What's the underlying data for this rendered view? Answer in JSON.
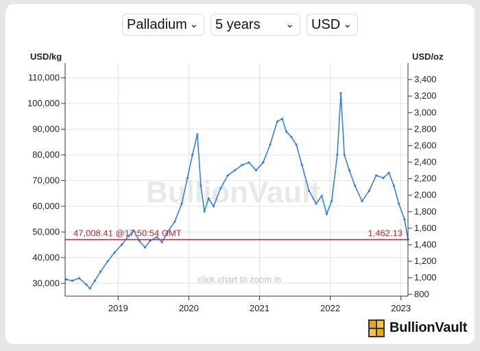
{
  "controls": {
    "metal": {
      "value": "Palladium",
      "chevron": "chevron-down-icon"
    },
    "period": {
      "value": "5 years",
      "chevron": "chevron-down-icon"
    },
    "currency": {
      "value": "USD",
      "chevron": "chevron-down-icon"
    }
  },
  "brand": {
    "name": "BullionVault",
    "icon": "gold-bar-stack-icon",
    "accent": "#e8a81b"
  },
  "colors": {
    "line": "#2f7fe6",
    "marker": "#c8252a",
    "grid": "#e2e2e2",
    "watermark": "#e8e8e8"
  },
  "chart_data": {
    "type": "line",
    "title": "",
    "watermark": "BullionVault",
    "hint": "click chart to zoom in",
    "left_axis": {
      "unit": "USD/kg",
      "ticks": [
        "30,000",
        "40,000",
        "50,000",
        "60,000",
        "70,000",
        "80,000",
        "90,000",
        "100,000",
        "110,000"
      ],
      "values": [
        30000,
        40000,
        50000,
        60000,
        70000,
        80000,
        90000,
        100000,
        110000
      ]
    },
    "right_axis": {
      "unit": "USD/oz",
      "ticks": [
        "800",
        "1,000",
        "1,200",
        "1,400",
        "1,600",
        "1,800",
        "2,000",
        "2,200",
        "2,400",
        "2,600",
        "2,800",
        "3,000",
        "3,200",
        "3,400"
      ],
      "values": [
        800,
        1000,
        1200,
        1400,
        1600,
        1800,
        2000,
        2200,
        2400,
        2600,
        2800,
        3000,
        3200,
        3400
      ]
    },
    "x_axis": {
      "ticks": [
        "2019",
        "2020",
        "2021",
        "2022",
        "2023"
      ],
      "values": [
        2019,
        2020,
        2021,
        2022,
        2023
      ],
      "range": [
        2018.25,
        2023.1
      ]
    },
    "y_range_usd_kg": [
      25000,
      112000
    ],
    "current": {
      "label_left": "47,008.41 @17:50:54 GMT",
      "label_right": "1,462.13",
      "usd_kg": 47008.41,
      "usd_oz": 1462.13
    },
    "series": [
      {
        "x": [
          2018.27,
          2018.35,
          2018.45,
          2018.55,
          2018.6,
          2018.67,
          2018.75,
          2018.85,
          2018.95,
          2019.05,
          2019.15,
          2019.22,
          2019.3,
          2019.38,
          2019.45,
          2019.55,
          2019.62,
          2019.7,
          2019.8,
          2019.9,
          2019.98,
          2020.05,
          2020.12,
          2020.17,
          2020.22,
          2020.28,
          2020.35,
          2020.45,
          2020.55,
          2020.65,
          2020.75,
          2020.85,
          2020.95,
          2021.05,
          2021.15,
          2021.25,
          2021.32,
          2021.38,
          2021.45,
          2021.52,
          2021.6,
          2021.7,
          2021.8,
          2021.88,
          2021.95,
          2022.02,
          2022.1,
          2022.15,
          2022.2,
          2022.27,
          2022.35,
          2022.45,
          2022.55,
          2022.65,
          2022.75,
          2022.83,
          2022.9,
          2022.97,
          2023.05,
          2023.1
        ],
        "y": [
          31500,
          31000,
          32000,
          29500,
          28000,
          31000,
          34500,
          38500,
          42000,
          45000,
          48500,
          50500,
          46500,
          44000,
          46500,
          48000,
          46000,
          50000,
          54000,
          61000,
          71000,
          80000,
          88000,
          68000,
          58000,
          63000,
          60000,
          67000,
          72000,
          74000,
          76000,
          77000,
          74000,
          77000,
          84000,
          93000,
          94000,
          89000,
          87000,
          84000,
          76000,
          66000,
          61000,
          64000,
          57000,
          62000,
          80000,
          104000,
          80000,
          74000,
          68000,
          62000,
          66000,
          72000,
          71000,
          73000,
          68000,
          61000,
          55000,
          47008
        ]
      }
    ]
  }
}
